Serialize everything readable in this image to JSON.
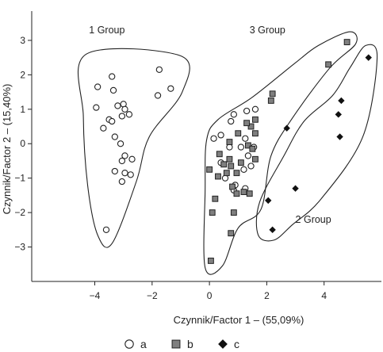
{
  "chart_data": {
    "type": "scatter",
    "xlabel": "Czynnik/Factor 1 – (55,09%)",
    "ylabel": "Czynnik/Factor 2 – (15,40%)",
    "xlim": [
      -6.2,
      6.0
    ],
    "ylim": [
      -4.0,
      3.85
    ],
    "xticks": [
      -4,
      -2,
      0,
      2,
      4
    ],
    "yticks": [
      -3,
      -2,
      -1,
      0,
      1,
      2,
      3
    ],
    "grid": false,
    "legend_position": "bottom-center",
    "series": [
      {
        "name": "a",
        "marker": "open-circle",
        "color": "#222222",
        "points": [
          [
            -3.4,
            1.95
          ],
          [
            -3.35,
            1.55
          ],
          [
            -3.9,
            1.65
          ],
          [
            -3.2,
            1.1
          ],
          [
            -3.0,
            1.15
          ],
          [
            -2.95,
            1.0
          ],
          [
            -3.05,
            0.8
          ],
          [
            -2.8,
            0.85
          ],
          [
            -3.95,
            1.05
          ],
          [
            -3.5,
            0.7
          ],
          [
            -3.7,
            0.45
          ],
          [
            -3.4,
            0.65
          ],
          [
            -3.3,
            0.2
          ],
          [
            -3.1,
            0.0
          ],
          [
            -2.95,
            -0.35
          ],
          [
            -3.05,
            -0.5
          ],
          [
            -2.7,
            -0.45
          ],
          [
            -3.3,
            -0.8
          ],
          [
            -2.95,
            -0.85
          ],
          [
            -2.75,
            -0.9
          ],
          [
            -3.05,
            -1.1
          ],
          [
            -1.75,
            2.15
          ],
          [
            -1.35,
            1.6
          ],
          [
            -1.8,
            1.4
          ],
          [
            -3.6,
            -2.5
          ],
          [
            1.6,
            1.0
          ],
          [
            1.3,
            0.95
          ],
          [
            0.85,
            0.85
          ],
          [
            0.75,
            0.65
          ],
          [
            0.4,
            0.25
          ],
          [
            0.15,
            0.15
          ],
          [
            1.25,
            0.15
          ],
          [
            1.1,
            -0.1
          ],
          [
            1.55,
            -0.1
          ],
          [
            0.7,
            -0.1
          ],
          [
            1.35,
            -0.35
          ],
          [
            0.4,
            -0.55
          ],
          [
            1.2,
            -0.75
          ],
          [
            0.55,
            -1.0
          ],
          [
            0.9,
            -1.2
          ],
          [
            1.25,
            -1.3
          ],
          [
            0.85,
            -1.35
          ],
          [
            1.45,
            -0.65
          ]
        ]
      },
      {
        "name": "b",
        "marker": "filled-square",
        "color": "#7f7f7f",
        "points": [
          [
            4.8,
            2.95
          ],
          [
            4.15,
            2.3
          ],
          [
            2.2,
            1.45
          ],
          [
            2.15,
            1.25
          ],
          [
            1.6,
            0.7
          ],
          [
            1.45,
            0.5
          ],
          [
            1.3,
            0.6
          ],
          [
            1.6,
            0.3
          ],
          [
            1.0,
            0.3
          ],
          [
            0.7,
            0.05
          ],
          [
            1.35,
            -0.05
          ],
          [
            1.5,
            -0.15
          ],
          [
            0.35,
            -0.3
          ],
          [
            0.7,
            -0.45
          ],
          [
            1.1,
            -0.55
          ],
          [
            1.6,
            -0.45
          ],
          [
            0.5,
            -0.6
          ],
          [
            0.75,
            -0.65
          ],
          [
            0.0,
            -0.75
          ],
          [
            0.95,
            -0.85
          ],
          [
            0.6,
            -0.85
          ],
          [
            0.3,
            -0.95
          ],
          [
            0.8,
            -1.25
          ],
          [
            1.2,
            -1.4
          ],
          [
            1.4,
            -1.45
          ],
          [
            0.95,
            -1.45
          ],
          [
            0.2,
            -1.6
          ],
          [
            0.1,
            -2.0
          ],
          [
            0.85,
            -2.0
          ],
          [
            0.75,
            -2.6
          ],
          [
            0.05,
            -3.4
          ]
        ]
      },
      {
        "name": "c",
        "marker": "filled-diamond",
        "color": "#111111",
        "points": [
          [
            5.55,
            2.5
          ],
          [
            4.6,
            1.25
          ],
          [
            4.5,
            0.85
          ],
          [
            4.55,
            0.2
          ],
          [
            2.7,
            0.45
          ],
          [
            3.0,
            -1.3
          ],
          [
            2.05,
            -1.65
          ],
          [
            2.2,
            -2.5
          ]
        ]
      }
    ],
    "annotations": [
      {
        "text": "1 Group",
        "x": -4.2,
        "y": 3.2
      },
      {
        "text": "3 Group",
        "x": 1.4,
        "y": 3.2
      },
      {
        "text": "2 Group",
        "x": 3.0,
        "y": -2.3
      }
    ],
    "group_outlines": [
      {
        "group": "1 Group",
        "points": [
          [
            -4.3,
            2.6
          ],
          [
            -1.0,
            2.55
          ],
          [
            -0.95,
            1.5
          ],
          [
            -2.1,
            0.2
          ],
          [
            -2.55,
            -1.1
          ],
          [
            -3.4,
            -2.9
          ],
          [
            -3.9,
            -2.65
          ],
          [
            -4.25,
            -1.2
          ],
          [
            -4.4,
            0.8
          ]
        ]
      },
      {
        "group": "3 Group",
        "points": [
          [
            3.8,
            2.85
          ],
          [
            4.9,
            3.25
          ],
          [
            5.1,
            2.9
          ],
          [
            4.2,
            2.2
          ],
          [
            2.9,
            0.75
          ],
          [
            2.15,
            -0.35
          ],
          [
            1.8,
            -1.9
          ],
          [
            1.0,
            -2.45
          ],
          [
            0.45,
            -3.55
          ],
          [
            -0.15,
            -3.6
          ],
          [
            -0.15,
            -1.35
          ],
          [
            -0.1,
            0.1
          ],
          [
            0.3,
            0.7
          ],
          [
            1.5,
            1.35
          ],
          [
            3.0,
            2.35
          ]
        ]
      },
      {
        "group": "2 Group",
        "points": [
          [
            5.45,
            2.85
          ],
          [
            5.85,
            2.5
          ],
          [
            5.35,
            0.2
          ],
          [
            3.9,
            -1.6
          ],
          [
            2.9,
            -2.35
          ],
          [
            2.25,
            -2.8
          ],
          [
            1.7,
            -2.65
          ],
          [
            1.75,
            -1.7
          ],
          [
            2.6,
            -0.35
          ],
          [
            3.3,
            0.65
          ],
          [
            4.3,
            1.4
          ],
          [
            4.9,
            2.2
          ]
        ]
      }
    ]
  },
  "legend": {
    "items": [
      {
        "marker": "open-circle",
        "label": "a"
      },
      {
        "marker": "filled-square",
        "label": "b"
      },
      {
        "marker": "filled-diamond",
        "label": "c"
      }
    ]
  }
}
